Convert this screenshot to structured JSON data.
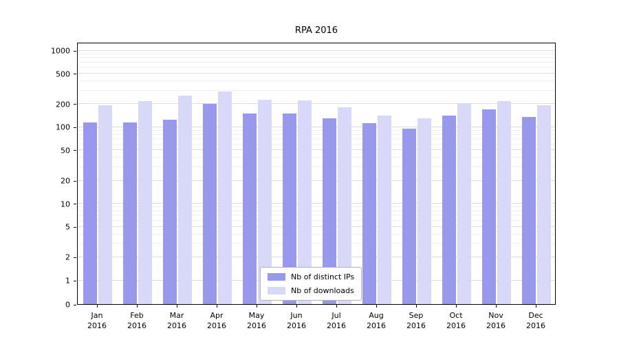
{
  "chart_data": {
    "type": "bar",
    "title": "RPA 2016",
    "categories": [
      "Jan 2016",
      "Feb 2016",
      "Mar 2016",
      "Apr 2016",
      "May 2016",
      "Jun 2016",
      "Jul 2016",
      "Aug 2016",
      "Sep 2016",
      "Oct 2016",
      "Nov 2016",
      "Dec 2016"
    ],
    "series": [
      {
        "name": "Nb of distinct IPs",
        "color": "#9898ec",
        "values": [
          115,
          115,
          125,
          200,
          150,
          150,
          130,
          112,
          95,
          140,
          170,
          135
        ]
      },
      {
        "name": "Nb of downloads",
        "color": "#d8d8f8",
        "values": [
          190,
          215,
          255,
          290,
          225,
          220,
          180,
          140,
          130,
          200,
          215,
          190
        ]
      }
    ],
    "xlabel": "",
    "ylabel": "",
    "yscale": "symlog",
    "yticks": [
      0,
      1,
      2,
      5,
      10,
      20,
      50,
      100,
      200,
      500,
      1000
    ],
    "ylim": [
      0,
      1000
    ],
    "grid": true,
    "legend_position": "lower-center"
  }
}
